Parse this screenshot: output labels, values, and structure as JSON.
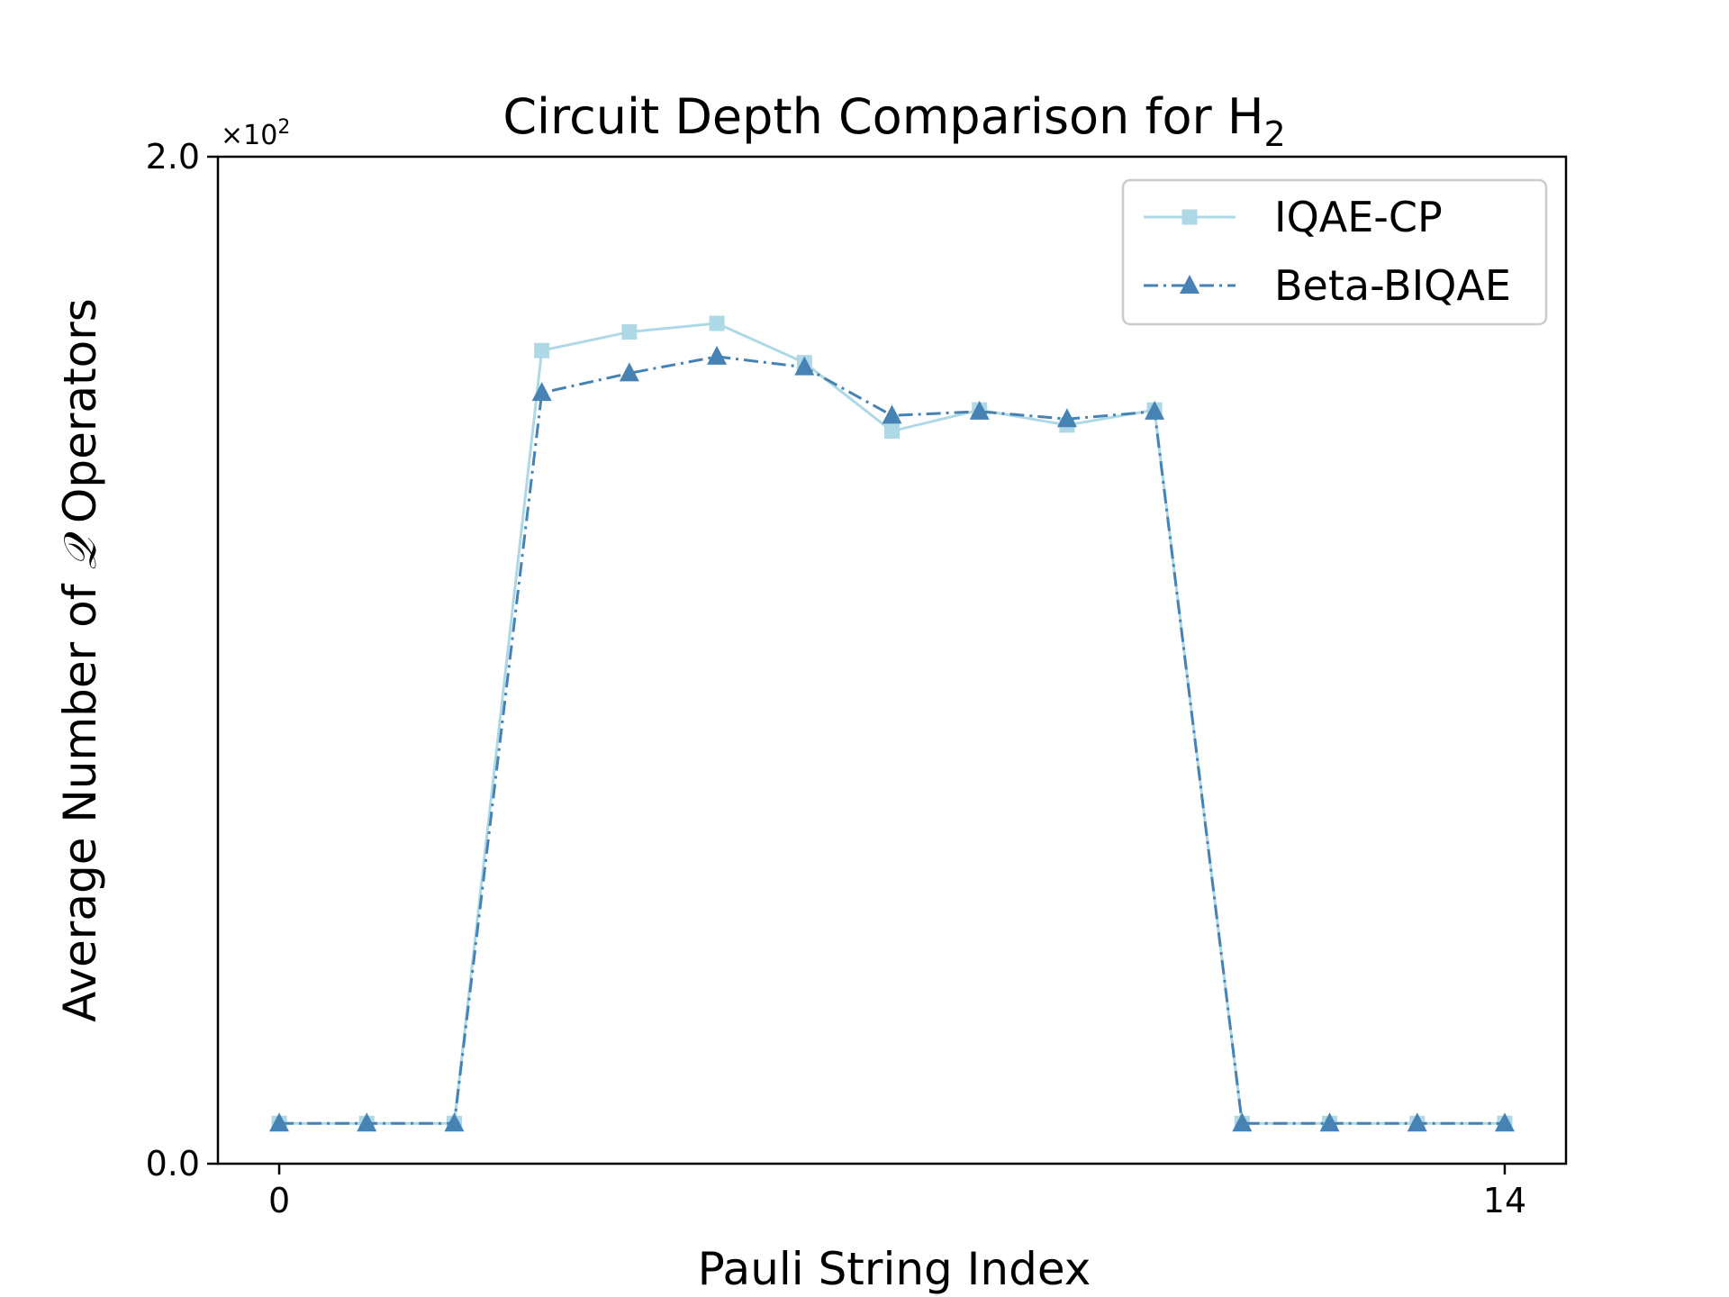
{
  "chart_data": {
    "type": "line",
    "title": "Circuit Depth Comparison for H",
    "title_subscript": "2",
    "xlabel": "Pauli String Index",
    "ylabel_prefix": "Average Number of ",
    "ylabel_symbol": "𝒬",
    "ylabel_suffix": " Operators",
    "y_offset_label": "×10",
    "y_offset_exponent": "2",
    "x_ticks": [
      0,
      14
    ],
    "x_tick_labels": [
      "0",
      "14"
    ],
    "y_ticks": [
      0.0,
      2.0
    ],
    "y_tick_labels": [
      "0.0",
      "2.0"
    ],
    "xlim": [
      -0.7,
      14.7
    ],
    "ylim": [
      0.0,
      2.0
    ],
    "grid": false,
    "legend_position": "top-right",
    "x": [
      0,
      1,
      2,
      3,
      4,
      5,
      6,
      7,
      8,
      9,
      10,
      11,
      12,
      13,
      14
    ],
    "series": [
      {
        "name": "IQAE-CP",
        "color": "#add8e6",
        "marker": "square",
        "line_style": "solid",
        "values": [
          0.08,
          0.08,
          0.08,
          1.615,
          1.652,
          1.669,
          1.591,
          1.455,
          1.497,
          1.467,
          1.497,
          0.08,
          0.08,
          0.08,
          0.08
        ]
      },
      {
        "name": "Beta-BIQAE",
        "color": "#4682b4",
        "marker": "triangle",
        "line_style": "dashdot",
        "values": [
          0.08,
          0.08,
          0.08,
          1.531,
          1.57,
          1.603,
          1.582,
          1.486,
          1.494,
          1.479,
          1.494,
          0.08,
          0.08,
          0.08,
          0.08
        ]
      }
    ]
  }
}
